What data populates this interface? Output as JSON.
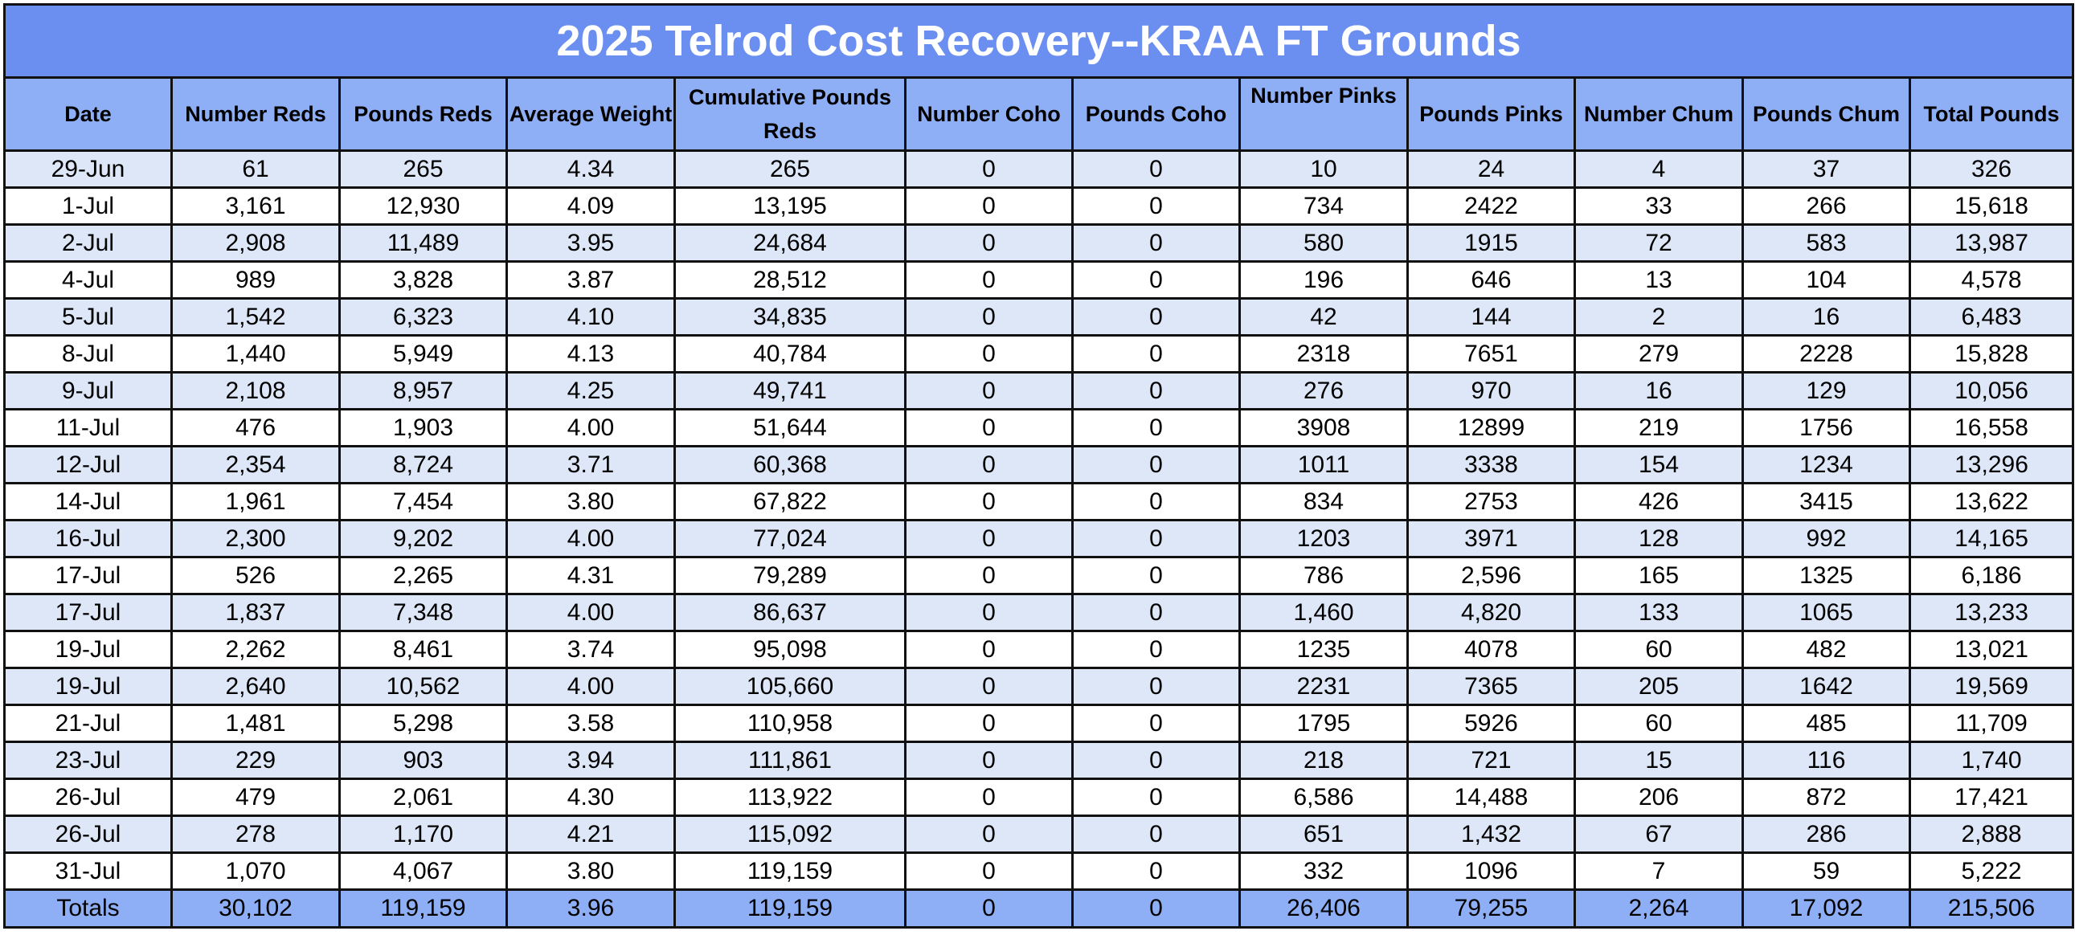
{
  "title": "2025 Telrod Cost Recovery--KRAA FT Grounds",
  "headers": [
    "Date",
    "Number  Reds",
    "Pounds Reds",
    "Average Weight",
    "Cumulative Pounds Reds",
    "Number Coho",
    "Pounds Coho",
    "Number Pinks",
    "Pounds Pinks",
    "Number Chum",
    "Pounds Chum",
    "Total Pounds"
  ],
  "rows": [
    [
      "29-Jun",
      "61",
      "265",
      "4.34",
      "265",
      "0",
      "0",
      "10",
      "24",
      "4",
      "37",
      "326"
    ],
    [
      "1-Jul",
      "3,161",
      "12,930",
      "4.09",
      "13,195",
      "0",
      "0",
      "734",
      "2422",
      "33",
      "266",
      "15,618"
    ],
    [
      "2-Jul",
      "2,908",
      "11,489",
      "3.95",
      "24,684",
      "0",
      "0",
      "580",
      "1915",
      "72",
      "583",
      "13,987"
    ],
    [
      "4-Jul",
      "989",
      "3,828",
      "3.87",
      "28,512",
      "0",
      "0",
      "196",
      "646",
      "13",
      "104",
      "4,578"
    ],
    [
      "5-Jul",
      "1,542",
      "6,323",
      "4.10",
      "34,835",
      "0",
      "0",
      "42",
      "144",
      "2",
      "16",
      "6,483"
    ],
    [
      "8-Jul",
      "1,440",
      "5,949",
      "4.13",
      "40,784",
      "0",
      "0",
      "2318",
      "7651",
      "279",
      "2228",
      "15,828"
    ],
    [
      "9-Jul",
      "2,108",
      "8,957",
      "4.25",
      "49,741",
      "0",
      "0",
      "276",
      "970",
      "16",
      "129",
      "10,056"
    ],
    [
      "11-Jul",
      "476",
      "1,903",
      "4.00",
      "51,644",
      "0",
      "0",
      "3908",
      "12899",
      "219",
      "1756",
      "16,558"
    ],
    [
      "12-Jul",
      "2,354",
      "8,724",
      "3.71",
      "60,368",
      "0",
      "0",
      "1011",
      "3338",
      "154",
      "1234",
      "13,296"
    ],
    [
      "14-Jul",
      "1,961",
      "7,454",
      "3.80",
      "67,822",
      "0",
      "0",
      "834",
      "2753",
      "426",
      "3415",
      "13,622"
    ],
    [
      "16-Jul",
      "2,300",
      "9,202",
      "4.00",
      "77,024",
      "0",
      "0",
      "1203",
      "3971",
      "128",
      "992",
      "14,165"
    ],
    [
      "17-Jul",
      "526",
      "2,265",
      "4.31",
      "79,289",
      "0",
      "0",
      "786",
      "2,596",
      "165",
      "1325",
      "6,186"
    ],
    [
      "17-Jul",
      "1,837",
      "7,348",
      "4.00",
      "86,637",
      "0",
      "0",
      "1,460",
      "4,820",
      "133",
      "1065",
      "13,233"
    ],
    [
      "19-Jul",
      "2,262",
      "8,461",
      "3.74",
      "95,098",
      "0",
      "0",
      "1235",
      "4078",
      "60",
      "482",
      "13,021"
    ],
    [
      "19-Jul",
      "2,640",
      "10,562",
      "4.00",
      "105,660",
      "0",
      "0",
      "2231",
      "7365",
      "205",
      "1642",
      "19,569"
    ],
    [
      "21-Jul",
      "1,481",
      "5,298",
      "3.58",
      "110,958",
      "0",
      "0",
      "1795",
      "5926",
      "60",
      "485",
      "11,709"
    ],
    [
      "23-Jul",
      "229",
      "903",
      "3.94",
      "111,861",
      "0",
      "0",
      "218",
      "721",
      "15",
      "116",
      "1,740"
    ],
    [
      "26-Jul",
      "479",
      "2,061",
      "4.30",
      "113,922",
      "0",
      "0",
      "6,586",
      "14,488",
      "206",
      "872",
      "17,421"
    ],
    [
      "26-Jul",
      "278",
      "1,170",
      "4.21",
      "115,092",
      "0",
      "0",
      "651",
      "1,432",
      "67",
      "286",
      "2,888"
    ],
    [
      "31-Jul",
      "1,070",
      "4,067",
      "3.80",
      "119,159",
      "0",
      "0",
      "332",
      "1096",
      "7",
      "59",
      "5,222"
    ]
  ],
  "totals": [
    "Totals",
    "30,102",
    "119,159",
    "3.96",
    "119,159",
    "0",
    "0",
    "26,406",
    "79,255",
    "2,264",
    "17,092",
    "215,506"
  ],
  "colors": {
    "title_bg": "#6b8ff0",
    "header_bg": "#8eaef5",
    "band_bg": "#dde7f8",
    "totals_bg": "#8eaef5",
    "title_text": "#ffffff"
  }
}
